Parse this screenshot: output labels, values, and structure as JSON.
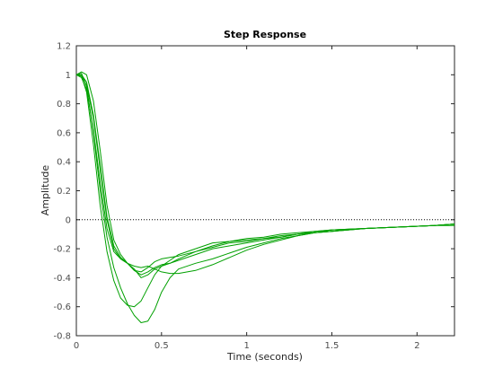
{
  "chart_data": {
    "type": "line",
    "title": "Step Response",
    "xlabel": "Time (seconds)",
    "ylabel": "Amplitude",
    "xlim": [
      0,
      2.22
    ],
    "ylim": [
      -0.8,
      1.2
    ],
    "xticks": [
      0,
      0.5,
      1,
      1.5,
      2
    ],
    "xtick_labels": [
      "0",
      "0.5",
      "1",
      "1.5",
      "2"
    ],
    "yticks": [
      -0.8,
      -0.6,
      -0.4,
      -0.2,
      0,
      0.2,
      0.4,
      0.6,
      0.8,
      1,
      1.2
    ],
    "ytick_labels": [
      "-0.8",
      "-0.6",
      "-0.4",
      "-0.2",
      "0",
      "0.2",
      "0.4",
      "0.6",
      "0.8",
      "1",
      "1.2"
    ],
    "grid": false,
    "line_color": "#00a000",
    "reference_line": {
      "y": 0,
      "style": "dotted",
      "color": "#000000"
    },
    "series": [
      {
        "x": [
          0,
          0.03,
          0.06,
          0.1,
          0.14,
          0.18,
          0.22,
          0.26,
          0.3,
          0.34,
          0.38,
          0.42,
          0.46,
          0.5,
          0.55,
          0.6,
          0.7,
          0.8,
          0.9,
          1.0,
          1.1,
          1.2,
          1.3,
          1.4,
          1.5,
          1.7,
          1.9,
          2.1,
          2.22
        ],
        "y": [
          1.0,
          1.01,
          0.92,
          0.6,
          0.2,
          -0.12,
          -0.33,
          -0.47,
          -0.58,
          -0.66,
          -0.71,
          -0.7,
          -0.62,
          -0.5,
          -0.4,
          -0.34,
          -0.3,
          -0.27,
          -0.23,
          -0.19,
          -0.16,
          -0.13,
          -0.11,
          -0.09,
          -0.08,
          -0.06,
          -0.05,
          -0.04,
          -0.04
        ]
      },
      {
        "x": [
          0,
          0.03,
          0.06,
          0.1,
          0.14,
          0.18,
          0.22,
          0.26,
          0.3,
          0.34,
          0.38,
          0.42,
          0.46,
          0.5,
          0.55,
          0.6,
          0.7,
          0.8,
          0.9,
          1.0,
          1.1,
          1.2,
          1.3,
          1.4,
          1.5,
          1.7,
          1.9,
          2.1,
          2.22
        ],
        "y": [
          1.0,
          0.99,
          0.88,
          0.52,
          0.1,
          -0.22,
          -0.42,
          -0.54,
          -0.59,
          -0.6,
          -0.56,
          -0.47,
          -0.38,
          -0.32,
          -0.28,
          -0.24,
          -0.2,
          -0.16,
          -0.15,
          -0.14,
          -0.13,
          -0.12,
          -0.1,
          -0.09,
          -0.07,
          -0.06,
          -0.05,
          -0.04,
          -0.03
        ]
      },
      {
        "x": [
          0,
          0.03,
          0.06,
          0.1,
          0.14,
          0.18,
          0.22,
          0.26,
          0.3,
          0.34,
          0.38,
          0.42,
          0.46,
          0.5,
          0.55,
          0.6,
          0.7,
          0.8,
          0.9,
          1.0,
          1.1,
          1.2,
          1.3,
          1.4,
          1.5,
          1.7,
          1.9,
          2.1,
          2.22
        ],
        "y": [
          1.0,
          1.02,
          1.0,
          0.82,
          0.48,
          0.1,
          -0.14,
          -0.24,
          -0.3,
          -0.34,
          -0.4,
          -0.38,
          -0.34,
          -0.32,
          -0.3,
          -0.27,
          -0.22,
          -0.18,
          -0.15,
          -0.13,
          -0.12,
          -0.1,
          -0.09,
          -0.08,
          -0.07,
          -0.06,
          -0.05,
          -0.04,
          -0.03
        ]
      },
      {
        "x": [
          0,
          0.03,
          0.06,
          0.1,
          0.14,
          0.18,
          0.22,
          0.26,
          0.3,
          0.34,
          0.38,
          0.42,
          0.46,
          0.5,
          0.55,
          0.6,
          0.7,
          0.8,
          0.9,
          1.0,
          1.1,
          1.2,
          1.3,
          1.4,
          1.5,
          1.7,
          1.9,
          2.1,
          2.22
        ],
        "y": [
          1.0,
          0.99,
          0.93,
          0.7,
          0.35,
          0.0,
          -0.2,
          -0.27,
          -0.3,
          -0.35,
          -0.38,
          -0.36,
          -0.33,
          -0.31,
          -0.3,
          -0.28,
          -0.24,
          -0.2,
          -0.18,
          -0.16,
          -0.14,
          -0.12,
          -0.1,
          -0.09,
          -0.08,
          -0.06,
          -0.05,
          -0.04,
          -0.03
        ]
      },
      {
        "x": [
          0,
          0.03,
          0.06,
          0.1,
          0.14,
          0.18,
          0.22,
          0.26,
          0.3,
          0.34,
          0.38,
          0.42,
          0.46,
          0.5,
          0.55,
          0.6,
          0.7,
          0.8,
          0.9,
          1.0,
          1.1,
          1.2,
          1.3,
          1.4,
          1.5,
          1.7,
          1.9,
          2.1,
          2.22
        ],
        "y": [
          1.0,
          0.98,
          0.9,
          0.62,
          0.26,
          -0.06,
          -0.22,
          -0.27,
          -0.3,
          -0.32,
          -0.33,
          -0.32,
          -0.34,
          -0.36,
          -0.37,
          -0.37,
          -0.35,
          -0.31,
          -0.26,
          -0.21,
          -0.17,
          -0.14,
          -0.11,
          -0.09,
          -0.08,
          -0.06,
          -0.05,
          -0.04,
          -0.03
        ]
      },
      {
        "x": [
          0,
          0.03,
          0.06,
          0.1,
          0.14,
          0.18,
          0.22,
          0.26,
          0.3,
          0.34,
          0.38,
          0.42,
          0.46,
          0.5,
          0.55,
          0.6,
          0.7,
          0.8,
          0.9,
          1.0,
          1.1,
          1.2,
          1.3,
          1.4,
          1.5,
          1.7,
          1.9,
          2.1,
          2.22
        ],
        "y": [
          1.0,
          1.0,
          0.95,
          0.72,
          0.38,
          0.02,
          -0.18,
          -0.26,
          -0.3,
          -0.35,
          -0.36,
          -0.33,
          -0.29,
          -0.27,
          -0.26,
          -0.25,
          -0.22,
          -0.19,
          -0.16,
          -0.15,
          -0.13,
          -0.11,
          -0.1,
          -0.08,
          -0.07,
          -0.06,
          -0.05,
          -0.04,
          -0.03
        ]
      }
    ]
  }
}
